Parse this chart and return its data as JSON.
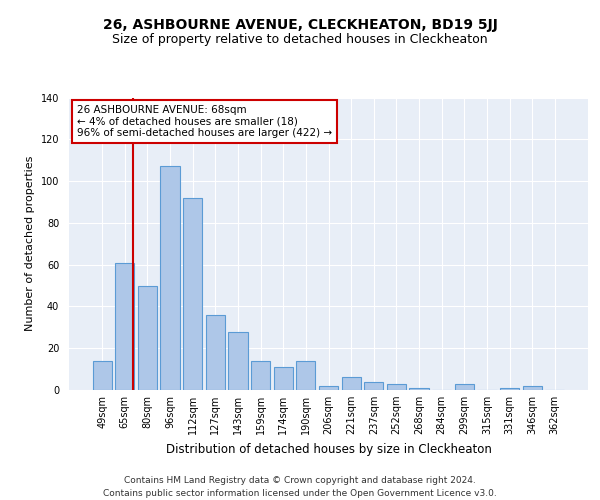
{
  "title": "26, ASHBOURNE AVENUE, CLECKHEATON, BD19 5JJ",
  "subtitle": "Size of property relative to detached houses in Cleckheaton",
  "xlabel": "Distribution of detached houses by size in Cleckheaton",
  "ylabel": "Number of detached properties",
  "categories": [
    "49sqm",
    "65sqm",
    "80sqm",
    "96sqm",
    "112sqm",
    "127sqm",
    "143sqm",
    "159sqm",
    "174sqm",
    "190sqm",
    "206sqm",
    "221sqm",
    "237sqm",
    "252sqm",
    "268sqm",
    "284sqm",
    "299sqm",
    "315sqm",
    "331sqm",
    "346sqm",
    "362sqm"
  ],
  "values": [
    14,
    61,
    50,
    107,
    92,
    36,
    28,
    14,
    11,
    14,
    2,
    6,
    4,
    3,
    1,
    0,
    3,
    0,
    1,
    2,
    0
  ],
  "bar_color": "#aec7e8",
  "bar_edgecolor": "#5b9bd5",
  "bar_linewidth": 0.8,
  "vline_color": "#cc0000",
  "vline_linewidth": 1.5,
  "annotation_text": "26 ASHBOURNE AVENUE: 68sqm\n← 4% of detached houses are smaller (18)\n96% of semi-detached houses are larger (422) →",
  "annotation_box_edgecolor": "#cc0000",
  "annotation_box_facecolor": "#ffffff",
  "ylim": [
    0,
    140
  ],
  "yticks": [
    0,
    20,
    40,
    60,
    80,
    100,
    120,
    140
  ],
  "bg_color": "#e8eef7",
  "fig_bg_color": "#ffffff",
  "grid_color": "#ffffff",
  "title_fontsize": 10,
  "subtitle_fontsize": 9,
  "xlabel_fontsize": 8.5,
  "ylabel_fontsize": 8,
  "tick_fontsize": 7,
  "annotation_fontsize": 7.5,
  "footer_text": "Contains HM Land Registry data © Crown copyright and database right 2024.\nContains public sector information licensed under the Open Government Licence v3.0.",
  "footer_fontsize": 6.5,
  "vline_pos": 1.35
}
